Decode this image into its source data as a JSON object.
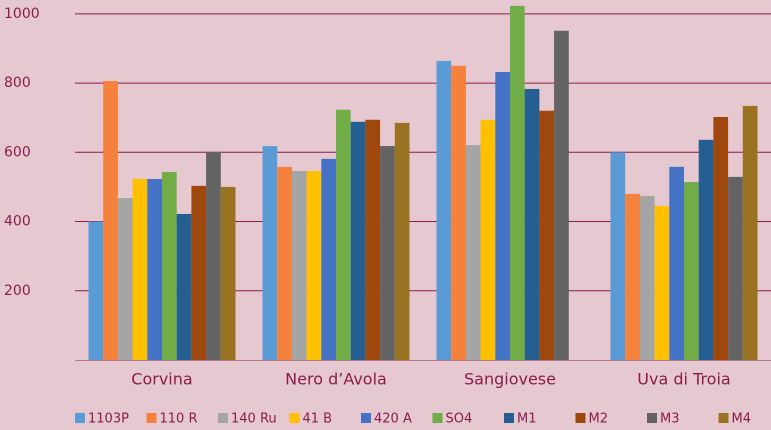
{
  "chart_data": {
    "type": "bar",
    "categories": [
      "Corvina",
      "Nero d’Avola",
      "Sangiovese",
      "Uva di Troia"
    ],
    "series": [
      {
        "name": "1103P",
        "color": "#5b9bd5",
        "values": [
          400,
          618,
          864,
          600
        ]
      },
      {
        "name": "110 R",
        "color": "#f4823c",
        "values": [
          806,
          558,
          850,
          480
        ]
      },
      {
        "name": "140 Ru",
        "color": "#a5a5a5",
        "values": [
          468,
          546,
          621,
          474
        ]
      },
      {
        "name": "41 B",
        "color": "#ffc000",
        "values": [
          523,
          546,
          694,
          445
        ]
      },
      {
        "name": "420 A",
        "color": "#4472c4",
        "values": [
          523,
          581,
          832,
          558
        ]
      },
      {
        "name": "SO4",
        "color": "#70ad47",
        "values": [
          543,
          723,
          1023,
          514
        ]
      },
      {
        "name": "M1",
        "color": "#255e91",
        "values": [
          422,
          688,
          783,
          636
        ]
      },
      {
        "name": "M2",
        "color": "#9e480e",
        "values": [
          503,
          694,
          720,
          702
        ]
      },
      {
        "name": "M3",
        "color": "#636363",
        "values": [
          601,
          618,
          951,
          529
        ]
      },
      {
        "name": "M4",
        "color": "#997222",
        "values": [
          500,
          685,
          null,
          734
        ]
      }
    ],
    "ylim": [
      0,
      1040
    ],
    "yticks": [
      200,
      400,
      600,
      800,
      1000
    ],
    "grid": true,
    "legend": "bottom"
  }
}
